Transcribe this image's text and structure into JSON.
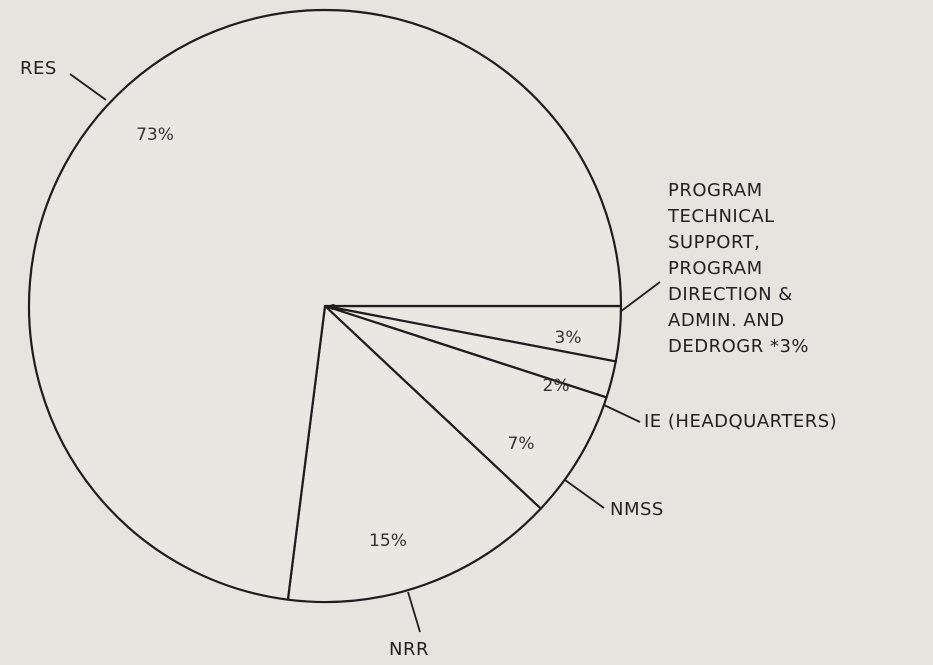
{
  "chart_data": {
    "type": "pie",
    "categories": [
      "PROGRAM TECHNICAL SUPPORT, PROGRAM DIRECTION & ADMIN. AND DEDROGR *3%",
      "IE (HEADQUARTERS)",
      "NMSS",
      "NRR",
      "RES"
    ],
    "values": [
      3,
      2,
      7,
      15,
      73
    ],
    "value_labels": [
      "3%",
      "2%",
      "7%",
      "15%",
      "73%"
    ]
  }
}
